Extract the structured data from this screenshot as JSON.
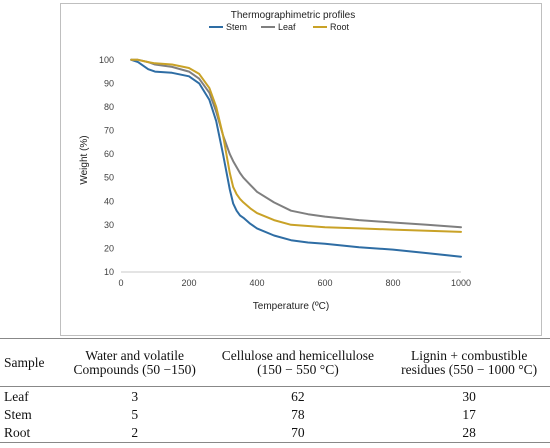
{
  "chart_data": {
    "type": "line",
    "title": "Thermographimetric profiles",
    "xlabel": "Temperature (ºC)",
    "ylabel": "Weight (%)",
    "xlim": [
      0,
      1000
    ],
    "ylim": [
      10,
      105
    ],
    "xticks": [
      "0",
      "200",
      "400",
      "600",
      "800",
      "1000"
    ],
    "yticks": [
      "10",
      "20",
      "30",
      "40",
      "50",
      "60",
      "70",
      "80",
      "90",
      "100"
    ],
    "legend_position": "top",
    "grid": false,
    "series": [
      {
        "name": "Stem",
        "color": "#2e6da4",
        "x": [
          30,
          50,
          80,
          100,
          150,
          200,
          230,
          260,
          280,
          300,
          320,
          330,
          340,
          350,
          360,
          380,
          400,
          450,
          500,
          550,
          600,
          700,
          800,
          900,
          1000
        ],
        "y": [
          100,
          99,
          96,
          95,
          94.5,
          93,
          90,
          83,
          74,
          60,
          45,
          39,
          36,
          34,
          33,
          30.5,
          28.5,
          25.5,
          23.5,
          22.5,
          22,
          20.5,
          19.5,
          18,
          16.5
        ]
      },
      {
        "name": "Leaf",
        "color": "#7f7f7f",
        "x": [
          30,
          50,
          80,
          100,
          150,
          200,
          230,
          260,
          280,
          300,
          320,
          330,
          340,
          350,
          360,
          380,
          400,
          450,
          500,
          550,
          600,
          700,
          800,
          900,
          1000
        ],
        "y": [
          100,
          100,
          99,
          98,
          97,
          95,
          92,
          86,
          78,
          68,
          60,
          57,
          54.5,
          52,
          50,
          47,
          44,
          39.5,
          36,
          34.5,
          33.5,
          32,
          31,
          30,
          29
        ]
      },
      {
        "name": "Root",
        "color": "#c9a227",
        "x": [
          30,
          50,
          80,
          100,
          150,
          200,
          230,
          260,
          280,
          300,
          320,
          330,
          340,
          350,
          360,
          380,
          400,
          450,
          500,
          550,
          600,
          700,
          800,
          900,
          1000
        ],
        "y": [
          100,
          100,
          99,
          98.5,
          98,
          96.5,
          94,
          88,
          80,
          68,
          52,
          46,
          43,
          41,
          39.5,
          37,
          35,
          32,
          30,
          29.5,
          29,
          28.5,
          28,
          27.5,
          27
        ]
      }
    ]
  },
  "table": {
    "headers": {
      "sample": "Sample",
      "water_line1": "Water and volatile",
      "water_line2": "Compounds (50 −150)",
      "cell_line1": "Cellulose and hemicellulose",
      "cell_line2": "(150 − 550 °C)",
      "lignin_line1": "Lignin + combustible",
      "lignin_line2": "residues (550 − 1000 °C)"
    },
    "rows": [
      {
        "sample": "Leaf",
        "water": "3",
        "cellulose": "62",
        "lignin": "30"
      },
      {
        "sample": "Stem",
        "water": "5",
        "cellulose": "78",
        "lignin": "17"
      },
      {
        "sample": "Root",
        "water": "2",
        "cellulose": "70",
        "lignin": "28"
      }
    ]
  }
}
